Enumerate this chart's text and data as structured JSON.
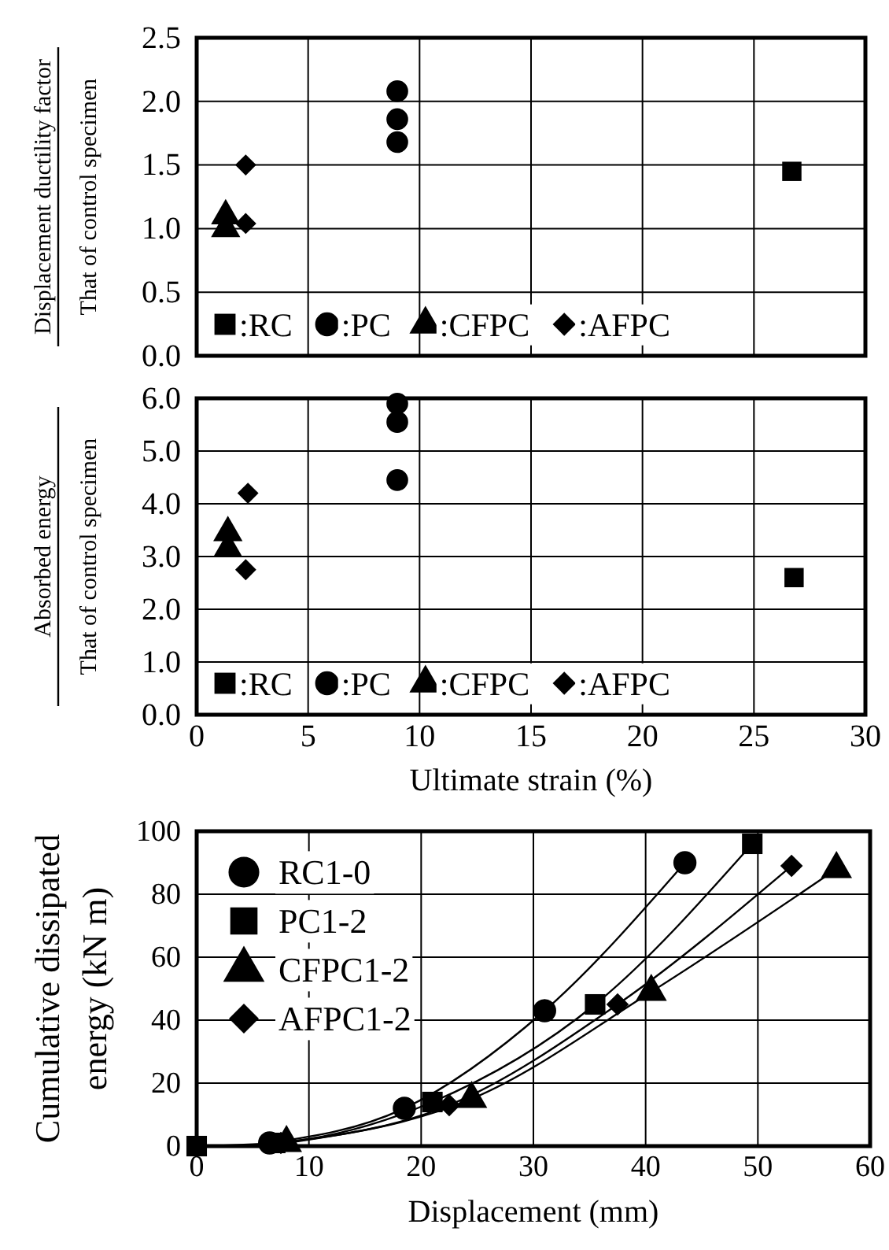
{
  "chart_data": [
    {
      "type": "scatter",
      "ylabel": "Displacement ductility factor\nThat of control specimen",
      "xlim": [
        0,
        30
      ],
      "xticks": [
        0,
        5,
        10,
        15,
        20,
        25,
        30
      ],
      "ylim": [
        0,
        2.5
      ],
      "yticks": [
        {
          "value": 0,
          "label": "0.0"
        },
        {
          "value": 0.5,
          "label": "0.5"
        },
        {
          "value": 1,
          "label": "1.0"
        },
        {
          "value": 1.5,
          "label": "1.5"
        },
        {
          "value": 2,
          "label": "2.0"
        },
        {
          "value": 2.5,
          "label": "2.5"
        }
      ],
      "tick_labels": "y",
      "grid": true,
      "legend": "bottom",
      "series": [
        {
          "name": ":RC",
          "color": "#000000",
          "marker": "square",
          "x": [
            26.7
          ],
          "values": [
            1.45
          ]
        },
        {
          "name": ":PC",
          "color": "#000000",
          "marker": "circle",
          "x": [
            9,
            9,
            9
          ],
          "values": [
            2.08,
            1.86,
            1.68
          ]
        },
        {
          "name": ":CFPC",
          "color": "#000000",
          "marker": "triangle",
          "x": [
            1.3,
            1.3
          ],
          "values": [
            1.1,
            1.0
          ]
        },
        {
          "name": ":AFPC",
          "color": "#000000",
          "marker": "diamond",
          "x": [
            2.2,
            2.2
          ],
          "values": [
            1.5,
            1.04
          ]
        }
      ]
    },
    {
      "type": "scatter",
      "xlabel": "Ultimate strain (%)",
      "ylabel": "Absorbed energy\nThat of control specimen",
      "xlim": [
        0,
        30
      ],
      "xticks": [
        0,
        5,
        10,
        15,
        20,
        25,
        30
      ],
      "ylim": [
        0,
        6
      ],
      "yticks": [
        {
          "value": 0,
          "label": "0.0"
        },
        {
          "value": 1,
          "label": "1.0"
        },
        {
          "value": 2,
          "label": "2.0"
        },
        {
          "value": 3,
          "label": "3.0"
        },
        {
          "value": 4,
          "label": "4.0"
        },
        {
          "value": 5,
          "label": "5.0"
        },
        {
          "value": 6,
          "label": "6.0"
        }
      ],
      "grid": true,
      "legend": "bottom",
      "series": [
        {
          "name": ":RC",
          "color": "#000000",
          "marker": "square",
          "x": [
            26.8
          ],
          "values": [
            2.6
          ]
        },
        {
          "name": ":PC",
          "color": "#000000",
          "marker": "circle",
          "x": [
            9,
            9,
            9
          ],
          "values": [
            5.9,
            5.55,
            4.45
          ]
        },
        {
          "name": ":CFPC",
          "color": "#000000",
          "marker": "triangle",
          "x": [
            1.4,
            1.4
          ],
          "values": [
            3.45,
            3.15
          ]
        },
        {
          "name": ":AFPC",
          "color": "#000000",
          "marker": "diamond",
          "x": [
            2.3,
            2.2
          ],
          "values": [
            4.2,
            2.75
          ]
        }
      ]
    },
    {
      "type": "line",
      "xlabel": "Displacement (mm)",
      "ylabel": "Cumulative dissipated\nenergy (kN m)",
      "xlim": [
        0,
        60
      ],
      "xticks": [
        0,
        10,
        20,
        30,
        40,
        50,
        60
      ],
      "ylim": [
        0,
        100
      ],
      "yticks": [
        0,
        20,
        40,
        60,
        80,
        100
      ],
      "grid": true,
      "legend": "top left",
      "series": [
        {
          "name": "RC1-0",
          "color": "#000000",
          "marker": "circle",
          "x": [
            6.5,
            18.5,
            31,
            43.5
          ],
          "values": [
            1,
            12,
            43,
            90
          ]
        },
        {
          "name": "PC1-2",
          "color": "#000000",
          "marker": "square",
          "x": [
            0,
            7,
            21,
            35.5,
            49.5
          ],
          "values": [
            0,
            1,
            14,
            45,
            96
          ]
        },
        {
          "name": "CFPC1-2",
          "color": "#000000",
          "marker": "triangle",
          "x": [
            8,
            24.5,
            40.5,
            57
          ],
          "values": [
            1,
            15,
            49,
            88
          ]
        },
        {
          "name": "AFPC1-2",
          "color": "#000000",
          "marker": "diamond",
          "x": [
            7.5,
            22.5,
            37.5,
            53
          ],
          "values": [
            1,
            13,
            45,
            89
          ]
        }
      ]
    }
  ]
}
